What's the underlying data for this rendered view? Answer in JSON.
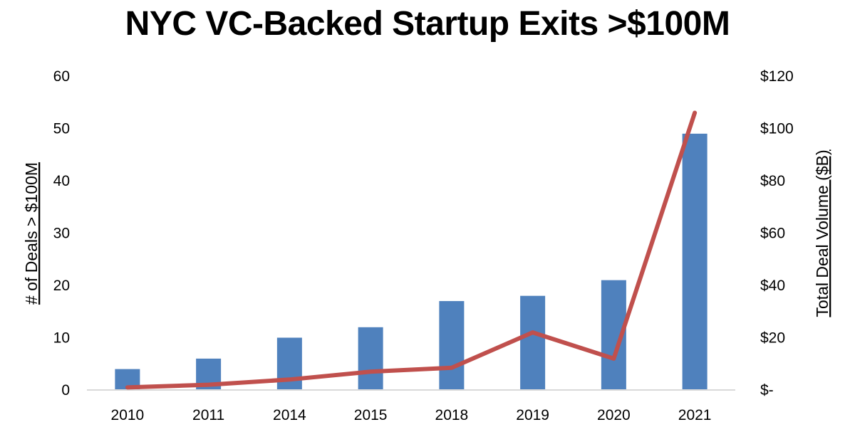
{
  "chart_data": {
    "type": "bar+line",
    "title": "NYC VC-Backed Startup Exits >$100M",
    "categories": [
      "2010",
      "2011",
      "2014",
      "2015",
      "2018",
      "2019",
      "2020",
      "2021"
    ],
    "series": [
      {
        "name": "# of Deals > $100M",
        "type": "bar",
        "axis": "left",
        "color": "#4F81BD",
        "values": [
          4,
          6,
          10,
          12,
          17,
          18,
          21,
          49
        ]
      },
      {
        "name": "Total Deal Volume ($B)",
        "type": "line",
        "axis": "right",
        "color": "#C0504D",
        "values": [
          1,
          2,
          4,
          7,
          8.5,
          22,
          12,
          106
        ]
      }
    ],
    "y_left": {
      "label": "# of Deals > $100M",
      "range": [
        0,
        60
      ],
      "ticks": [
        0,
        10,
        20,
        30,
        40,
        50,
        60
      ],
      "tick_labels": [
        "0",
        "10",
        "20",
        "30",
        "40",
        "50",
        "60"
      ]
    },
    "y_right": {
      "label": "Total Deal Volume ($B)",
      "range": [
        0,
        120
      ],
      "ticks": [
        0,
        20,
        40,
        60,
        80,
        100,
        120
      ],
      "tick_labels": [
        "$-",
        "$20",
        "$40",
        "$60",
        "$80",
        "$100",
        "$120"
      ]
    },
    "grid": false,
    "legend": "none"
  }
}
